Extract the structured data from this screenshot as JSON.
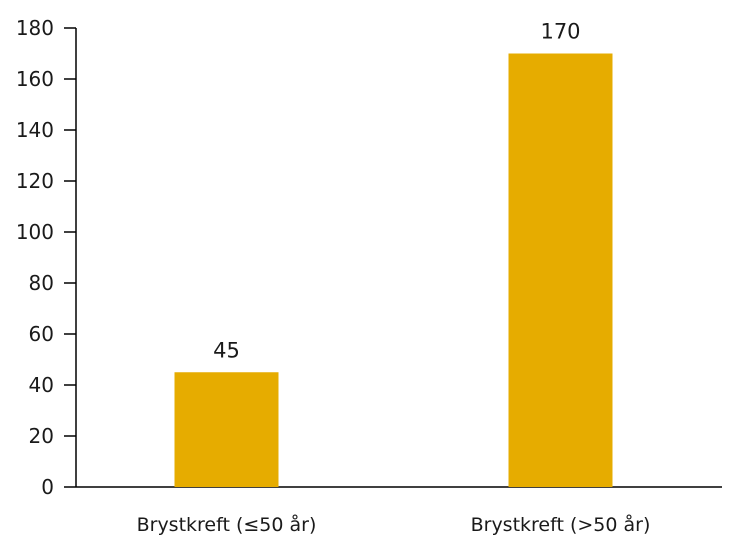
{
  "chart_data": {
    "type": "bar",
    "categories": [
      "Brystkreft (≤50 år)",
      "Brystkreft (>50 år)"
    ],
    "values": [
      45,
      170
    ],
    "data_labels": [
      "45",
      "170"
    ],
    "ylim": [
      0,
      180
    ],
    "yticks": [
      0,
      20,
      40,
      60,
      80,
      100,
      120,
      140,
      160,
      180
    ],
    "ytick_labels": [
      "0",
      "20",
      "40",
      "60",
      "80",
      "100",
      "120",
      "140",
      "160",
      "180"
    ],
    "grid": false,
    "legend": "none",
    "colors": {
      "bar": "#E6AC00",
      "axis": "#000000",
      "text": "#1a1a1a"
    }
  }
}
